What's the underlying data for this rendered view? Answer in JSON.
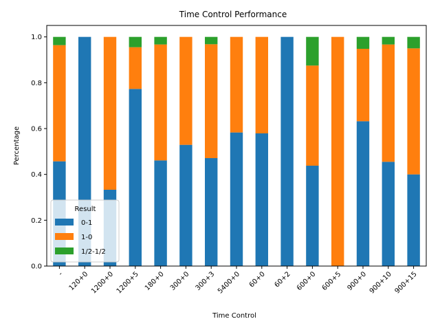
{
  "chart_data": {
    "type": "bar",
    "stacked": true,
    "title": "Time Control Performance",
    "xlabel": "Time Control",
    "ylabel": "Percentage",
    "ylim": [
      0,
      1.05
    ],
    "yticks": [
      "0.0",
      "0.2",
      "0.4",
      "0.6",
      "0.8",
      "1.0"
    ],
    "categories": [
      "-",
      "120+0",
      "1200+0",
      "1200+5",
      "180+0",
      "300+0",
      "300+3",
      "5400+0",
      "60+0",
      "60+2",
      "600+0",
      "600+5",
      "900+0",
      "900+10",
      "900+15"
    ],
    "series": [
      {
        "name": "0-1",
        "color": "#1f77b4",
        "values": [
          0.457,
          1.0,
          0.333,
          0.773,
          0.461,
          0.529,
          0.471,
          0.583,
          0.579,
          1.0,
          0.438,
          0.0,
          0.632,
          0.455,
          0.4
        ]
      },
      {
        "name": "1-0",
        "color": "#ff7f0e",
        "values": [
          0.507,
          0.0,
          0.667,
          0.182,
          0.506,
          0.471,
          0.497,
          0.417,
          0.421,
          0.0,
          0.437,
          1.0,
          0.316,
          0.512,
          0.55
        ]
      },
      {
        "name": "1/2-1/2",
        "color": "#2ca02c",
        "values": [
          0.036,
          0.0,
          0.0,
          0.045,
          0.033,
          0.0,
          0.032,
          0.0,
          0.0,
          0.0,
          0.125,
          0.0,
          0.052,
          0.033,
          0.05
        ]
      }
    ],
    "legend": {
      "title": "Result",
      "position": "lower-left"
    },
    "grid": false
  }
}
